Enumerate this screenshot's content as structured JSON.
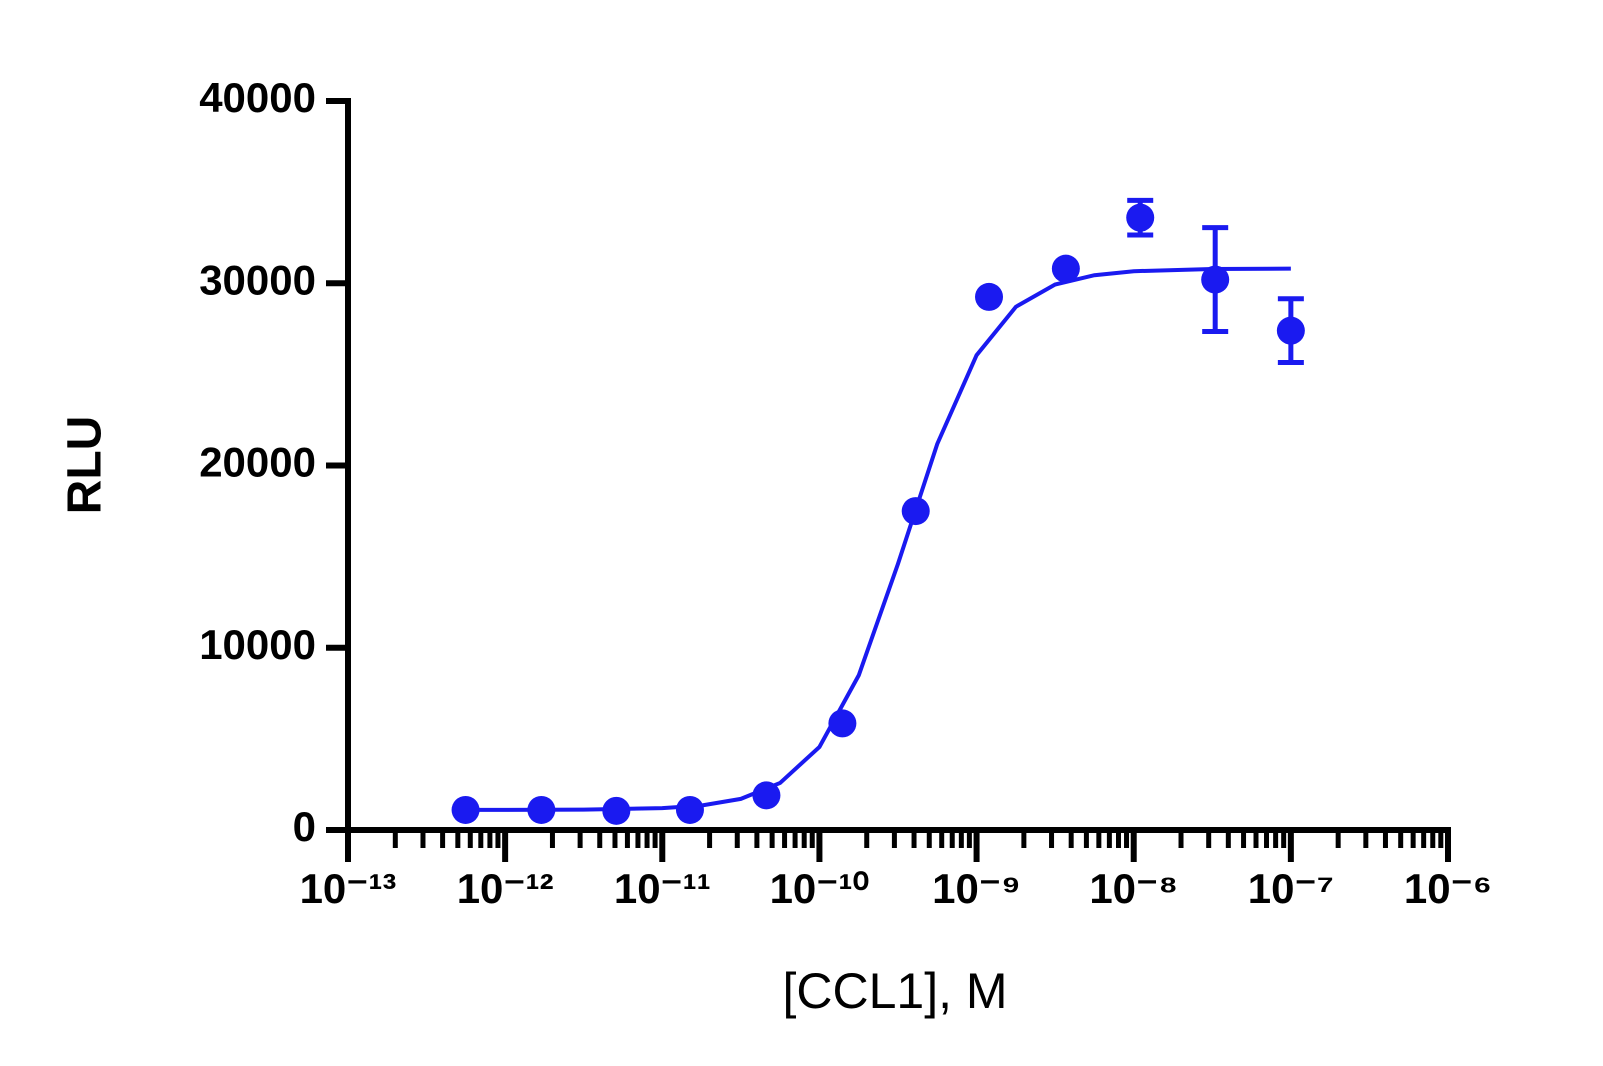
{
  "chart_data": {
    "type": "scatter",
    "y_label": "RLU",
    "x_label": "[CCL1], M",
    "x_log": true,
    "minor_ticks": true,
    "xlim": [
      1e-13,
      1e-06
    ],
    "xticks": [
      {
        "value": 1e-13,
        "label": "10⁻¹³"
      },
      {
        "value": 1e-12,
        "label": "10⁻¹²"
      },
      {
        "value": 1e-11,
        "label": "10⁻¹¹"
      },
      {
        "value": 1e-10,
        "label": "10⁻¹⁰"
      },
      {
        "value": 1e-09,
        "label": "10⁻⁹"
      },
      {
        "value": 1e-08,
        "label": "10⁻⁸"
      },
      {
        "value": 1e-07,
        "label": "10⁻⁷"
      },
      {
        "value": 1e-06,
        "label": "10⁻⁶"
      }
    ],
    "ylim": [
      0,
      40000
    ],
    "yticks": [
      0,
      10000,
      20000,
      30000,
      40000
    ],
    "color": "#1a1af0",
    "series": [
      {
        "x": [
          5.6e-13,
          1.7e-12,
          5.1e-12,
          1.5e-11,
          4.6e-11,
          1.4e-10,
          4.1e-10,
          1.2e-09,
          3.7e-09,
          1.1e-08,
          3.3e-08,
          1e-07
        ],
        "values": [
          1100,
          1100,
          1050,
          1100,
          1900,
          5850,
          17500,
          29250,
          30800,
          33600,
          30200,
          27400
        ],
        "errors": [
          null,
          null,
          null,
          null,
          null,
          null,
          null,
          null,
          null,
          950,
          2850,
          1750
        ]
      }
    ],
    "fit": {
      "x": [
        5.6e-13,
        1e-12,
        3.16e-12,
        1e-11,
        1.78e-11,
        3.16e-11,
        5.62e-11,
        1e-10,
        1.78e-10,
        3.16e-10,
        5.62e-10,
        1e-09,
        1.78e-09,
        3.16e-09,
        5.62e-09,
        1e-08,
        3.16e-08,
        1e-07
      ],
      "values": [
        1101,
        1102,
        1116,
        1198,
        1346,
        1707,
        2582,
        4557,
        8491,
        14600,
        21180,
        26050,
        28710,
        29930,
        30440,
        30660,
        30780,
        30800
      ]
    }
  }
}
